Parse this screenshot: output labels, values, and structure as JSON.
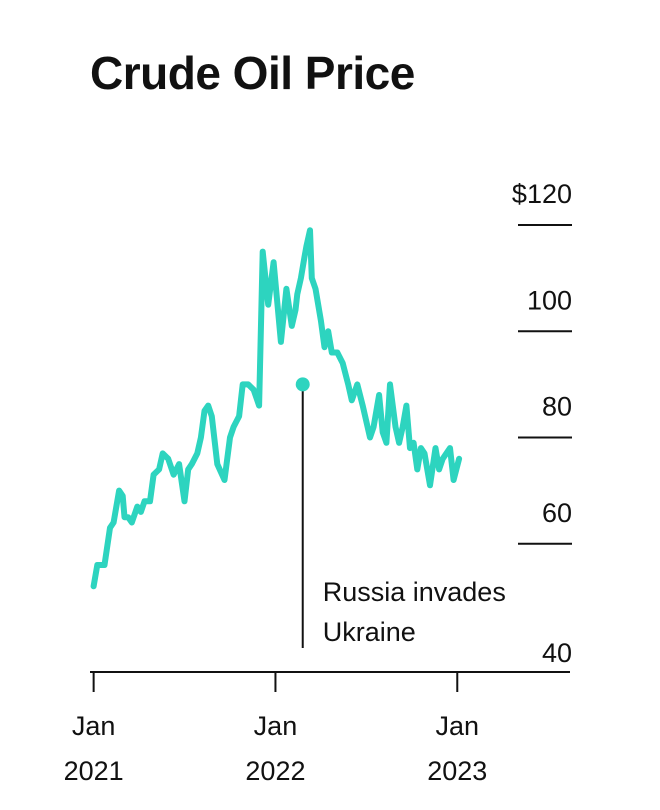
{
  "chart_data": {
    "type": "line",
    "title": "Crude Oil Price",
    "xlabel": "",
    "ylabel": "",
    "ylim": [
      40,
      120
    ],
    "xlim": [
      2020.98,
      2023.62
    ],
    "grid": false,
    "line_color": "#2dd4bf",
    "y_ticks": [
      {
        "value": 40,
        "label": "40"
      },
      {
        "value": 60,
        "label": "60"
      },
      {
        "value": 80,
        "label": "80"
      },
      {
        "value": 100,
        "label": "100"
      },
      {
        "value": 120,
        "label": "$120"
      }
    ],
    "x_ticks": [
      {
        "value": 2021.0,
        "line1": "Jan",
        "line2": "2021"
      },
      {
        "value": 2022.0,
        "line1": "Jan",
        "line2": "2022"
      },
      {
        "value": 2023.0,
        "line1": "Jan",
        "line2": "2023"
      }
    ],
    "series": [
      {
        "name": "Crude Oil Price",
        "x": [
          2021.0,
          2021.02,
          2021.06,
          2021.09,
          2021.11,
          2021.14,
          2021.16,
          2021.17,
          2021.19,
          2021.21,
          2021.24,
          2021.26,
          2021.28,
          2021.31,
          2021.33,
          2021.36,
          2021.38,
          2021.41,
          2021.44,
          2021.47,
          2021.5,
          2021.52,
          2021.54,
          2021.57,
          2021.59,
          2021.61,
          2021.63,
          2021.65,
          2021.68,
          2021.72,
          2021.75,
          2021.77,
          2021.8,
          2021.81,
          2021.82,
          2021.85,
          2021.88,
          2021.91,
          2021.93,
          2021.96,
          2021.99,
          2022.03,
          2022.06,
          2022.09,
          2022.11,
          2022.12,
          2022.14,
          2022.16,
          2022.17,
          2022.19,
          2022.2,
          2022.22,
          2022.23,
          2022.25,
          2022.27,
          2022.29,
          2022.31,
          2022.34,
          2022.37,
          2022.4,
          2022.42,
          2022.45,
          2022.48,
          2022.52,
          2022.54,
          2022.57,
          2022.59,
          2022.61,
          2022.63,
          2022.66,
          2022.68,
          2022.7,
          2022.72,
          2022.74,
          2022.76,
          2022.78,
          2022.8,
          2022.82,
          2022.85,
          2022.88,
          2022.9,
          2022.92,
          2022.96,
          2022.98,
          2023.01
        ],
        "y": [
          52,
          56,
          56,
          63,
          64,
          70,
          69,
          65,
          65,
          64,
          67,
          66,
          68,
          68,
          73,
          74,
          77,
          76,
          73,
          75,
          68,
          74,
          75,
          77,
          80,
          85,
          86,
          84,
          75,
          72,
          80,
          82,
          84,
          87,
          90,
          90,
          89,
          86,
          115,
          105,
          113,
          98,
          108,
          101,
          104,
          107,
          110,
          114,
          116,
          119,
          110,
          108,
          106,
          102,
          97,
          100,
          96,
          96,
          94,
          90,
          87,
          90,
          86,
          80,
          82,
          88,
          81,
          79,
          90,
          82,
          79,
          82,
          86,
          78,
          79,
          74,
          78,
          77,
          71,
          78,
          74,
          76,
          78,
          72,
          76
        ]
      }
    ],
    "annotation": {
      "x": 2022.15,
      "y": 90,
      "text_line1": "Russia invades",
      "text_line2": "Ukraine"
    }
  }
}
